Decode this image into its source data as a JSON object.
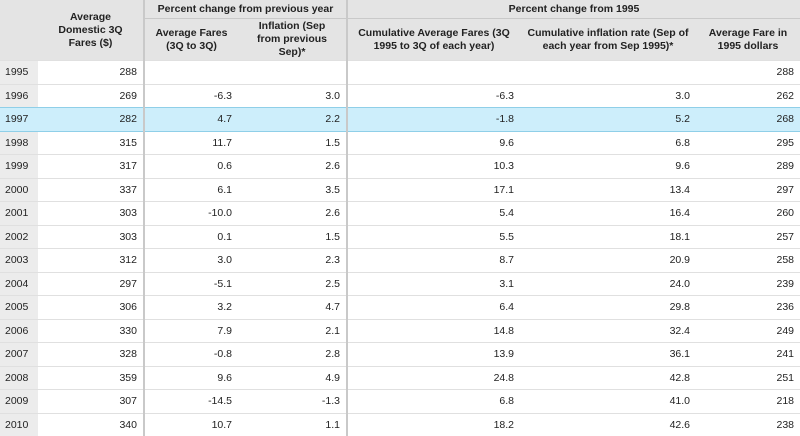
{
  "headers": {
    "col1": "Average Domestic 3Q Fares ($)",
    "group1": "Percent change from previous year",
    "group2": "Percent change from 1995",
    "col2": "Average Fares (3Q to 3Q)",
    "col3": "Inflation (Sep from previous Sep)*",
    "col4": "Cumulative Average Fares (3Q 1995 to 3Q of each year)",
    "col5": "Cumulative inflation rate (Sep of each year from Sep 1995)*",
    "col6": "Average Fare in 1995 dollars"
  },
  "highlighted_year": "1997",
  "rows": [
    {
      "year": "1995",
      "fare": "288",
      "avg_change": "",
      "inflation": "",
      "cum_fares": "",
      "cum_inflation": "",
      "fare_1995": "288"
    },
    {
      "year": "1996",
      "fare": "269",
      "avg_change": "-6.3",
      "inflation": "3.0",
      "cum_fares": "-6.3",
      "cum_inflation": "3.0",
      "fare_1995": "262"
    },
    {
      "year": "1997",
      "fare": "282",
      "avg_change": "4.7",
      "inflation": "2.2",
      "cum_fares": "-1.8",
      "cum_inflation": "5.2",
      "fare_1995": "268"
    },
    {
      "year": "1998",
      "fare": "315",
      "avg_change": "11.7",
      "inflation": "1.5",
      "cum_fares": "9.6",
      "cum_inflation": "6.8",
      "fare_1995": "295"
    },
    {
      "year": "1999",
      "fare": "317",
      "avg_change": "0.6",
      "inflation": "2.6",
      "cum_fares": "10.3",
      "cum_inflation": "9.6",
      "fare_1995": "289"
    },
    {
      "year": "2000",
      "fare": "337",
      "avg_change": "6.1",
      "inflation": "3.5",
      "cum_fares": "17.1",
      "cum_inflation": "13.4",
      "fare_1995": "297"
    },
    {
      "year": "2001",
      "fare": "303",
      "avg_change": "-10.0",
      "inflation": "2.6",
      "cum_fares": "5.4",
      "cum_inflation": "16.4",
      "fare_1995": "260"
    },
    {
      "year": "2002",
      "fare": "303",
      "avg_change": "0.1",
      "inflation": "1.5",
      "cum_fares": "5.5",
      "cum_inflation": "18.1",
      "fare_1995": "257"
    },
    {
      "year": "2003",
      "fare": "312",
      "avg_change": "3.0",
      "inflation": "2.3",
      "cum_fares": "8.7",
      "cum_inflation": "20.9",
      "fare_1995": "258"
    },
    {
      "year": "2004",
      "fare": "297",
      "avg_change": "-5.1",
      "inflation": "2.5",
      "cum_fares": "3.1",
      "cum_inflation": "24.0",
      "fare_1995": "239"
    },
    {
      "year": "2005",
      "fare": "306",
      "avg_change": "3.2",
      "inflation": "4.7",
      "cum_fares": "6.4",
      "cum_inflation": "29.8",
      "fare_1995": "236"
    },
    {
      "year": "2006",
      "fare": "330",
      "avg_change": "7.9",
      "inflation": "2.1",
      "cum_fares": "14.8",
      "cum_inflation": "32.4",
      "fare_1995": "249"
    },
    {
      "year": "2007",
      "fare": "328",
      "avg_change": "-0.8",
      "inflation": "2.8",
      "cum_fares": "13.9",
      "cum_inflation": "36.1",
      "fare_1995": "241"
    },
    {
      "year": "2008",
      "fare": "359",
      "avg_change": "9.6",
      "inflation": "4.9",
      "cum_fares": "24.8",
      "cum_inflation": "42.8",
      "fare_1995": "251"
    },
    {
      "year": "2009",
      "fare": "307",
      "avg_change": "-14.5",
      "inflation": "-1.3",
      "cum_fares": "6.8",
      "cum_inflation": "41.0",
      "fare_1995": "218"
    },
    {
      "year": "2010",
      "fare": "340",
      "avg_change": "10.7",
      "inflation": "1.1",
      "cum_fares": "18.2",
      "cum_inflation": "42.6",
      "fare_1995": "238"
    }
  ],
  "colors": {
    "header_bg": "#e4e4e4",
    "year_col_bg": "#ececec",
    "highlight_bg": "#cdeefb",
    "highlight_border": "#8fcfe8"
  }
}
